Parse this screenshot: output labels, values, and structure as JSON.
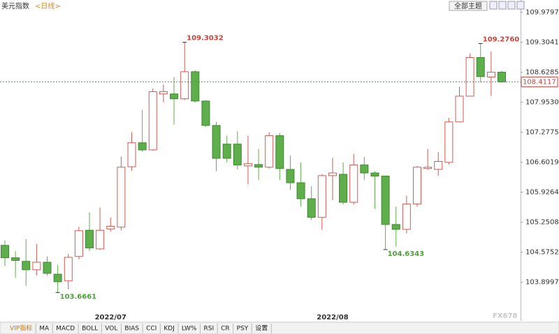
{
  "ui": {
    "symbol": "美元指数",
    "period": "<日线>",
    "theme_button": "全部主题",
    "tabs": [
      "VIP指标",
      "MA",
      "MACD",
      "BOLL",
      "VOL",
      "BIAS",
      "CCI",
      "KDJ",
      "LW%",
      "RSI",
      "CR",
      "PSY",
      "设置"
    ],
    "watermark": "FX678"
  },
  "chart_data": {
    "type": "candlestick",
    "categories": [
      null,
      null,
      null,
      null,
      null,
      null,
      null,
      null,
      null,
      null,
      "2022/07",
      null,
      null,
      null,
      null,
      null,
      null,
      null,
      null,
      null,
      null,
      null,
      null,
      null,
      null,
      null,
      null,
      null,
      null,
      null,
      null,
      "2022/08",
      null,
      null,
      null,
      null,
      null,
      null,
      null,
      null,
      null,
      null,
      null,
      null,
      null,
      null,
      null,
      null
    ],
    "open": [
      104.73,
      104.45,
      104.37,
      104.18,
      104.35,
      104.08,
      103.93,
      104.48,
      105.07,
      104.65,
      105.1,
      105.14,
      106.5,
      107.04,
      106.88,
      108.14,
      108.14,
      108.03,
      108.64,
      107.98,
      107.43,
      107.01,
      107.01,
      106.52,
      106.55,
      106.49,
      107.2,
      106.44,
      106.14,
      105.78,
      105.36,
      106.3,
      106.33,
      105.7,
      106.54,
      106.36,
      106.29,
      105.2,
      105.09,
      105.66,
      106.46,
      106.44,
      106.6,
      107.51,
      108.09,
      108.96,
      108.52,
      108.63
    ],
    "high": [
      104.84,
      104.6,
      104.87,
      104.76,
      104.48,
      104.29,
      104.54,
      105.15,
      105.47,
      105.58,
      105.36,
      106.73,
      107.28,
      107.78,
      108.26,
      108.35,
      108.52,
      109.3032,
      108.67,
      108.0,
      107.51,
      107.2,
      107.3,
      107.2,
      106.9,
      107.28,
      107.26,
      106.75,
      106.6,
      106.06,
      106.33,
      106.7,
      106.6,
      106.79,
      106.72,
      106.4,
      106.3,
      105.6,
      105.85,
      106.52,
      106.9,
      106.83,
      107.6,
      108.3,
      109.05,
      109.276,
      109.1,
      108.66
    ],
    "low": [
      104.26,
      104.0,
      103.82,
      104.05,
      104.05,
      103.6661,
      103.74,
      104.41,
      104.6,
      104.63,
      105.04,
      105.07,
      106.41,
      106.84,
      106.86,
      107.95,
      107.45,
      108.0,
      107.95,
      107.4,
      106.4,
      106.6,
      106.44,
      106.1,
      106.2,
      106.46,
      106.2,
      105.98,
      105.6,
      105.3,
      105.08,
      105.75,
      105.65,
      105.65,
      106.2,
      105.55,
      104.6343,
      104.7,
      105.0,
      105.6,
      106.43,
      106.3,
      106.55,
      107.5,
      108.09,
      108.4,
      108.1,
      108.39
    ],
    "close": [
      104.45,
      104.39,
      104.18,
      104.35,
      104.1,
      103.91,
      104.46,
      105.06,
      104.67,
      105.07,
      105.16,
      106.49,
      107.04,
      106.88,
      108.19,
      108.19,
      108.03,
      108.64,
      107.98,
      107.43,
      106.69,
      106.69,
      106.54,
      106.57,
      106.49,
      107.2,
      106.46,
      106.14,
      105.78,
      105.36,
      106.3,
      106.36,
      105.7,
      106.54,
      106.36,
      106.29,
      105.2,
      105.09,
      105.66,
      106.49,
      106.49,
      106.62,
      107.51,
      108.09,
      108.96,
      108.53,
      108.63,
      108.4117
    ],
    "up_color": "#d25a50",
    "down_color": "#5fae4c",
    "annotations": [
      {
        "value": 109.3032,
        "label": "109.3032"
      },
      {
        "value": 103.6661,
        "label": "103.6661"
      },
      {
        "value": 104.6343,
        "label": "104.6343"
      },
      {
        "value": 109.276,
        "label": "109.2760"
      }
    ],
    "last": {
      "value": 108.4117,
      "label": "108.4117"
    },
    "ylim": [
      103.11,
      110.13
    ],
    "yticks": [
      109.9797,
      109.3041,
      108.6285,
      {
        "value": 107.953,
        "label": "107.9530"
      },
      107.2775,
      106.6019,
      105.9264,
      105.2508,
      104.5752,
      103.8997
    ]
  }
}
